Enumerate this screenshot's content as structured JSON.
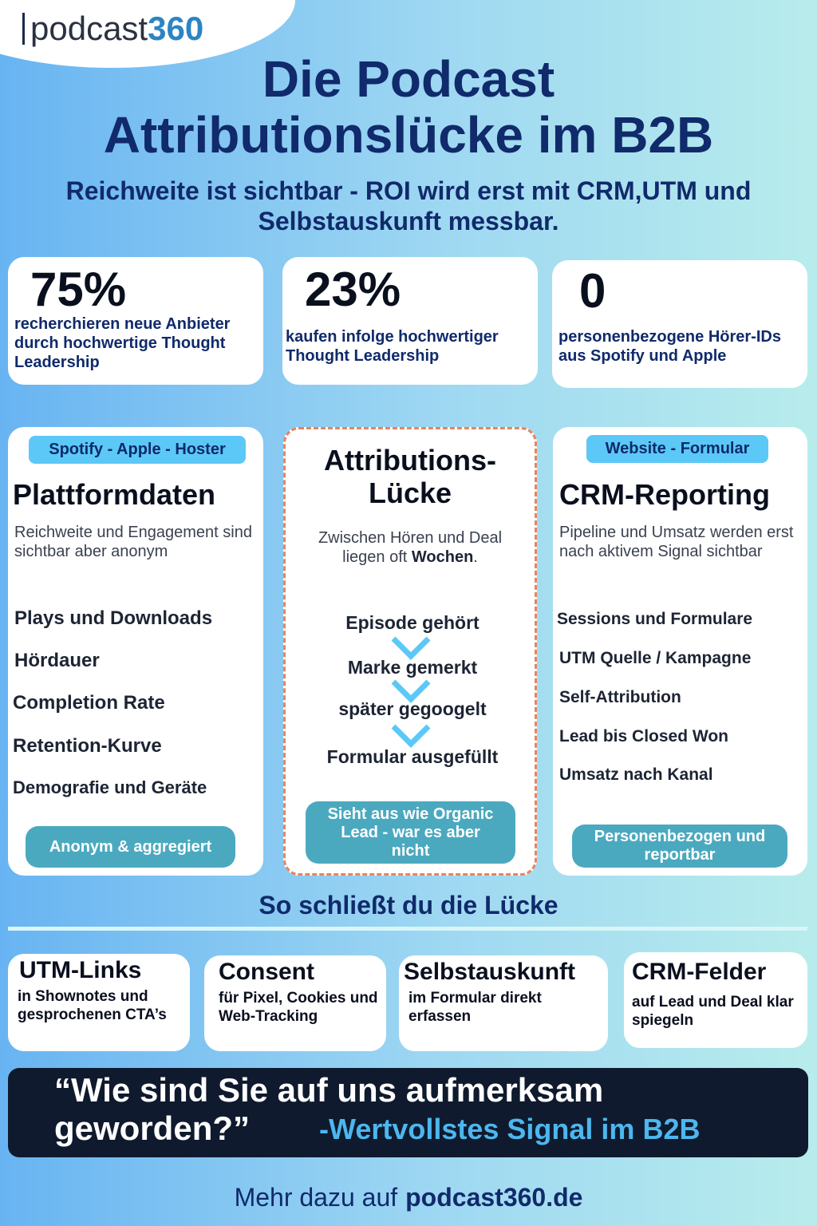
{
  "logo": {
    "name": "podcast",
    "suffix": "360"
  },
  "header": {
    "title": "Die Podcast Attributionslücke im B2B",
    "subtitle": "Reichweite ist sichtbar - ROI wird erst mit CRM,UTM und Selbstauskunft messbar."
  },
  "stats": [
    {
      "value": "75%",
      "text": "recherchieren neue Anbieter durch hochwertige Thought Leadership"
    },
    {
      "value": "23%",
      "text": "kaufen infolge hochwertiger Thought Leadership"
    },
    {
      "value": "0",
      "text": "personenbezogene Hörer-IDs aus Spotify und Apple"
    }
  ],
  "columns": {
    "left": {
      "tag": "Spotify - Apple - Hoster",
      "title": "Plattformdaten",
      "description": "Reichweite und Engagement sind sichtbar aber anonym",
      "items": [
        "Plays und Downloads",
        "Hördauer",
        "Completion Rate",
        "Retention-Kurve",
        "Demografie und Geräte"
      ],
      "badge": "Anonym & aggregiert"
    },
    "middle": {
      "title": "Attributions-Lücke",
      "description": {
        "before": "Zwischen Hören und Deal liegen oft",
        "bold": "Wochen",
        "after": "."
      },
      "steps": [
        "Episode gehört",
        "Marke gemerkt",
        "später gegoogelt",
        "Formular ausgefüllt"
      ],
      "badge": "Sieht aus wie Organic Lead - war es aber nicht"
    },
    "right": {
      "tag": "Website - Formular",
      "title": "CRM-Reporting",
      "description": "Pipeline und Umsatz werden erst nach aktivem Signal sichtbar",
      "items": [
        "Sessions und Formulare",
        "UTM Quelle / Kampagne",
        "Self-Attribution",
        "Lead bis Closed Won",
        "Umsatz nach Kanal"
      ],
      "badge": "Personenbezogen und reportbar"
    }
  },
  "section": {
    "title": "So schließt du die Lücke",
    "cards": [
      {
        "title": "UTM-Links",
        "text": "in Shownotes und gesprochenen CTA’s"
      },
      {
        "title": "Consent",
        "text": "für Pixel, Cookies und Web-Tracking"
      },
      {
        "title": "Selbstauskunft",
        "text": "im Formular direkt erfassen"
      },
      {
        "title": "CRM-Felder",
        "text": "auf Lead und Deal klar spiegeln"
      }
    ]
  },
  "quote": {
    "text": "“Wie sind Sie auf uns aufmerksam geworden?”",
    "source": "-Wertvollstes Signal im B2B"
  },
  "footer": {
    "prefix": "Mehr dazu auf",
    "link": "podcast360.de"
  }
}
